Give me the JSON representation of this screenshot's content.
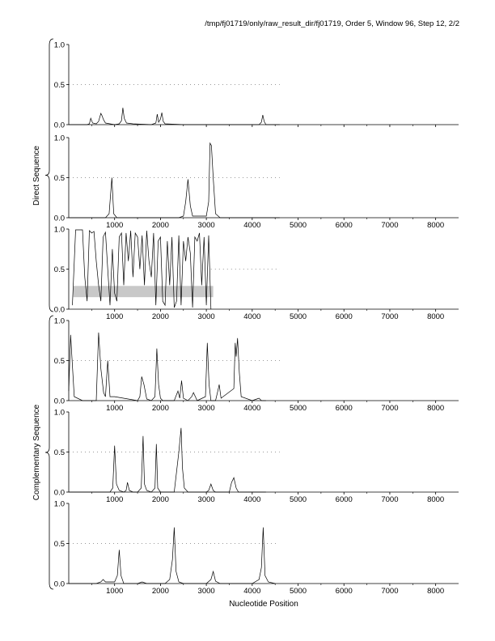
{
  "header": {
    "title": "/tmp/fj01719/only/raw_result_dir/fj01719, Order 5, Window 96, Step 12, 2/2"
  },
  "chart_data": {
    "type": "line",
    "xlabel": "Nucleotide Position",
    "group_labels": [
      "Direct Sequence",
      "Complementary Sequence"
    ],
    "xlim": [
      0,
      8500
    ],
    "ylim": [
      0,
      1
    ],
    "x_ticks": [
      1000,
      2000,
      3000,
      4000,
      5000,
      6000,
      7000,
      8000
    ],
    "y_ticks": [
      "0.0",
      "0.5",
      "1.0"
    ],
    "panels": [
      {
        "group": "Direct Sequence",
        "x_tick_labels": false,
        "dash_line": {
          "y": 0.5,
          "x_start": 0,
          "x_end": 4600
        },
        "shaded_band": null,
        "series": [
          {
            "x": [
              0,
              400,
              450,
              480,
              520,
              600,
              650,
              700,
              720,
              760,
              800,
              900,
              1000,
              1100,
              1150,
              1180,
              1210,
              1260,
              1400,
              1800,
              1900,
              1930,
              1960,
              2000,
              2030,
              2060,
              2100,
              2500,
              3000,
              4150,
              4200,
              4230,
              4260,
              4300,
              4600
            ],
            "y": [
              0,
              0,
              0.01,
              0.08,
              0.02,
              0.01,
              0.04,
              0.14,
              0.12,
              0.06,
              0.02,
              0.01,
              0,
              0.01,
              0.05,
              0.21,
              0.08,
              0.02,
              0.01,
              0,
              0.02,
              0.13,
              0.03,
              0.07,
              0.15,
              0.04,
              0.01,
              0,
              0,
              0,
              0.03,
              0.12,
              0.04,
              0,
              0
            ]
          }
        ]
      },
      {
        "group": "Direct Sequence",
        "x_tick_labels": true,
        "dash_line": {
          "y": 0.5,
          "x_start": 0,
          "x_end": 4600
        },
        "shaded_band": null,
        "series": [
          {
            "x": [
              0,
              500,
              800,
              880,
              940,
              980,
              1050,
              1300,
              2000,
              2400,
              2500,
              2550,
              2600,
              2650,
              2700,
              3000,
              3050,
              3080,
              3110,
              3150,
              3200,
              3300,
              4000,
              4600
            ],
            "y": [
              0,
              0,
              0,
              0.05,
              0.5,
              0.05,
              0,
              0,
              0,
              0,
              0.02,
              0.2,
              0.48,
              0.15,
              0.02,
              0.02,
              0.2,
              0.93,
              0.9,
              0.5,
              0.05,
              0,
              0,
              0
            ]
          }
        ]
      },
      {
        "group": "Direct Sequence",
        "x_tick_labels": true,
        "dash_line": {
          "y": 0.5,
          "x_start": 3100,
          "x_end": 4600
        },
        "shaded_band": {
          "x_start": 100,
          "x_end": 3150,
          "y_low": 0.15,
          "y_high": 0.29
        },
        "series": [
          {
            "x": [
              80,
              150,
              300,
              350,
              400,
              450,
              500,
              550,
              600,
              650,
              700,
              750,
              800,
              850,
              900,
              950,
              1000,
              1050,
              1100,
              1150,
              1200,
              1250,
              1300,
              1350,
              1400,
              1450,
              1500,
              1550,
              1600,
              1650,
              1700,
              1750,
              1800,
              1850,
              1900,
              1950,
              2000,
              2050,
              2100,
              2150,
              2200,
              2250,
              2300,
              2350,
              2400,
              2450,
              2500,
              2550,
              2600,
              2650,
              2700,
              2750,
              2800,
              2850,
              2900,
              2950,
              3000,
              3050,
              3100
            ],
            "y": [
              0.05,
              0.99,
              0.99,
              0.4,
              0.1,
              0.98,
              0.95,
              0.97,
              0.6,
              0.3,
              0.1,
              0.9,
              0.96,
              0.5,
              0.05,
              0.75,
              0.2,
              0.1,
              0.9,
              0.95,
              0.3,
              0.95,
              0.6,
              0.98,
              0.4,
              0.95,
              0.9,
              0.5,
              0.92,
              0.3,
              0.98,
              0.6,
              0.4,
              0.95,
              0.05,
              0.85,
              0.9,
              0.1,
              0.05,
              0.85,
              0.3,
              0.9,
              0.02,
              0.1,
              0.92,
              0.05,
              0.85,
              0.6,
              0.9,
              0.7,
              0.02,
              0.9,
              0.85,
              0.95,
              0.3,
              0.9,
              0.05,
              0.92,
              0
            ]
          }
        ]
      },
      {
        "group": "Complementary Sequence",
        "x_tick_labels": true,
        "dash_line": {
          "y": 0.5,
          "x_start": 0,
          "x_end": 4650
        },
        "shaded_band": null,
        "series": [
          {
            "x": [
              0,
              40,
              120,
              300,
              600,
              650,
              700,
              760,
              800,
              850,
              900,
              1000,
              1500,
              1550,
              1590,
              1640,
              1700,
              1800,
              1880,
              1920,
              1960,
              2000,
              2050,
              2300,
              2380,
              2420,
              2460,
              2500,
              2600,
              2680,
              2720,
              2800,
              2980,
              3020,
              3060,
              3100,
              3200,
              3250,
              3280,
              3320,
              3600,
              3630,
              3650,
              3680,
              3720,
              3760,
              4000,
              4100,
              4150,
              4200,
              4300
            ],
            "y": [
              0.12,
              0.82,
              0.05,
              0,
              0,
              0.85,
              0.4,
              0.1,
              0.05,
              0.5,
              0.05,
              0.05,
              0,
              0.05,
              0.3,
              0.2,
              0.02,
              0,
              0.05,
              0.65,
              0.2,
              0.03,
              0,
              0,
              0.12,
              0.03,
              0.25,
              0.03,
              0,
              0.05,
              0.1,
              0,
              0.05,
              0.72,
              0.2,
              0,
              0,
              0.12,
              0.2,
              0.03,
              0.15,
              0.72,
              0.55,
              0.78,
              0.35,
              0.05,
              0,
              0.02,
              0.03,
              0,
              0
            ]
          }
        ]
      },
      {
        "group": "Complementary Sequence",
        "x_tick_labels": true,
        "dash_line": {
          "y": 0.5,
          "x_start": 0,
          "x_end": 4600
        },
        "shaded_band": null,
        "series": [
          {
            "x": [
              0,
              900,
              960,
              1000,
              1040,
              1100,
              1200,
              1250,
              1280,
              1320,
              1400,
              1500,
              1580,
              1620,
              1650,
              1700,
              1800,
              1880,
              1910,
              1940,
              2000,
              2300,
              2400,
              2450,
              2480,
              2520,
              2600,
              3000,
              3050,
              3100,
              3150,
              3200,
              3300,
              3500,
              3550,
              3600,
              3650,
              3700,
              4000,
              4300
            ],
            "y": [
              0,
              0,
              0.05,
              0.58,
              0.1,
              0.02,
              0,
              0.02,
              0.12,
              0.02,
              0,
              0,
              0.05,
              0.7,
              0.1,
              0.02,
              0,
              0.05,
              0.6,
              0.05,
              0,
              0,
              0.5,
              0.8,
              0.3,
              0.05,
              0,
              0,
              0.02,
              0.1,
              0.02,
              0,
              0,
              0,
              0.12,
              0.18,
              0.05,
              0,
              0,
              0
            ]
          }
        ]
      },
      {
        "group": "Complementary Sequence",
        "x_tick_labels": true,
        "dash_line": {
          "y": 0.5,
          "x_start": 0,
          "x_end": 4550
        },
        "shaded_band": null,
        "series": [
          {
            "x": [
              0,
              600,
              700,
              750,
              800,
              1000,
              1060,
              1100,
              1140,
              1200,
              1500,
              1600,
              1700,
              2100,
              2200,
              2260,
              2300,
              2340,
              2400,
              2500,
              3000,
              3100,
              3150,
              3200,
              3300,
              4000,
              4150,
              4200,
              4240,
              4280,
              4350,
              4500
            ],
            "y": [
              0,
              0,
              0.02,
              0.05,
              0.02,
              0.02,
              0.1,
              0.42,
              0.1,
              0,
              0,
              0.02,
              0,
              0,
              0.05,
              0.3,
              0.7,
              0.15,
              0.02,
              0,
              0,
              0.05,
              0.15,
              0.03,
              0,
              0,
              0.05,
              0.2,
              0.7,
              0.1,
              0.02,
              0
            ]
          }
        ]
      }
    ]
  }
}
